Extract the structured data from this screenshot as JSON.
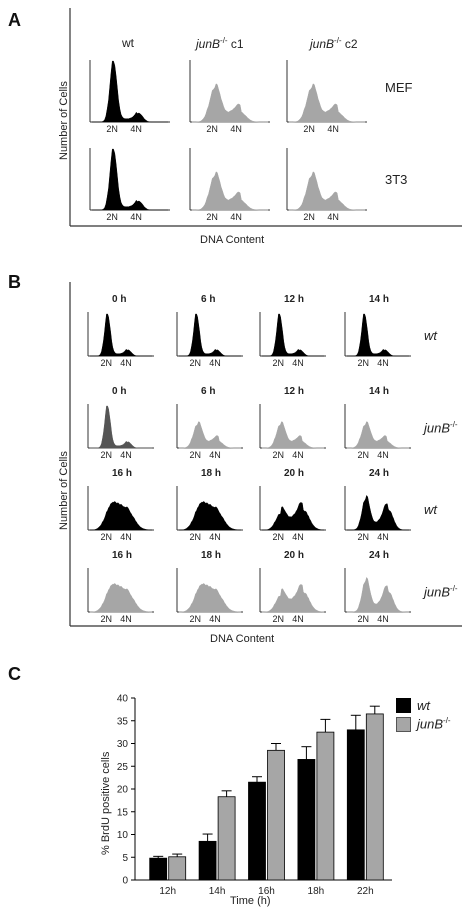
{
  "panels": {
    "a": {
      "letter": "A",
      "y_axis": "Number of Cells",
      "x_axis": "DNA Content",
      "columns": [
        {
          "label": "wt"
        },
        {
          "label_italic": "junB",
          "sup": "-/-",
          "suffix": " c1"
        },
        {
          "label_italic": "junB",
          "sup": "-/-",
          "suffix": " c2"
        }
      ],
      "rows": [
        "MEF",
        "3T3"
      ],
      "ploidy_labels": [
        "2N",
        "4N"
      ]
    },
    "b": {
      "letter": "B",
      "y_axis": "Number of Cells",
      "x_axis": "DNA Content",
      "rows": [
        {
          "times": [
            "0 h",
            "6 h",
            "12 h",
            "14 h"
          ],
          "genotype": "wt"
        },
        {
          "times": [
            "0 h",
            "6 h",
            "12 h",
            "14 h"
          ],
          "genotype": "junB",
          "sup": "-/-"
        },
        {
          "times": [
            "16 h",
            "18 h",
            "20 h",
            "24 h"
          ],
          "genotype": "wt"
        },
        {
          "times": [
            "16 h",
            "18 h",
            "20 h",
            "24 h"
          ],
          "genotype": "junB",
          "sup": "-/-"
        }
      ],
      "ploidy_labels": [
        "2N",
        "4N"
      ]
    },
    "c": {
      "letter": "C",
      "legend": [
        {
          "label": "wt",
          "color": "#000000"
        },
        {
          "label": "junB",
          "sup": "-/-",
          "color": "#a6a6a6"
        }
      ]
    }
  },
  "chart_data": {
    "type": "bar",
    "categories": [
      "12h",
      "14h",
      "16h",
      "18h",
      "22h"
    ],
    "series": [
      {
        "name": "wt",
        "values": [
          4.8,
          8.5,
          21.5,
          26.5,
          33
        ],
        "errors": [
          0.4,
          1.6,
          1.2,
          2.8,
          3.2
        ],
        "color": "#000000"
      },
      {
        "name": "junB-/-",
        "values": [
          5.1,
          18.3,
          28.5,
          32.5,
          36.5
        ],
        "errors": [
          0.6,
          1.3,
          1.5,
          2.8,
          1.7
        ],
        "color": "#a6a6a6"
      }
    ],
    "xlabel": "Time (h)",
    "ylabel": "% BrdU positive cells",
    "ylim": [
      0,
      40
    ],
    "yticks": [
      0,
      5,
      10,
      15,
      20,
      25,
      30,
      35,
      40
    ],
    "grid": false,
    "legend_position": "top-right"
  }
}
